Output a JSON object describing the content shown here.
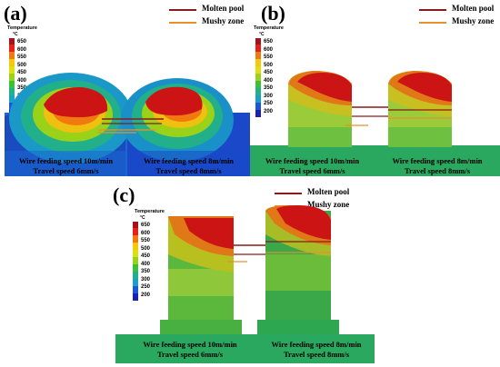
{
  "colors": {
    "molten": "#8b1a1a",
    "mushy": "#e8902a",
    "scale": [
      "#a0141a",
      "#e8201a",
      "#f07a10",
      "#f5c80a",
      "#dde010",
      "#9ad21a",
      "#3cc03a",
      "#20b08a",
      "#1aa0c8",
      "#1a58d8",
      "#1a20b0"
    ]
  },
  "legend": {
    "molten_label": "Molten pool",
    "mushy_label": "Mushy zone"
  },
  "colorbar": {
    "title": "Temperature",
    "unit": "°C",
    "ticks": [
      "650",
      "600",
      "550",
      "500",
      "450",
      "400",
      "350",
      "300",
      "250",
      "200"
    ]
  },
  "panels": [
    {
      "label": "(a)",
      "captions": [
        {
          "line1": "Wire feeding speed 10m/min",
          "line2": "Travel speed 6mm/s"
        },
        {
          "line1": "Wire feeding speed 8m/min",
          "line2": "Travel speed 8mm/s"
        }
      ]
    },
    {
      "label": "(b)",
      "captions": [
        {
          "line1": "Wire feeding speed 10m/min",
          "line2": "Travel speed 6mm/s"
        },
        {
          "line1": "Wire feeding speed 8m/min",
          "line2": "Travel speed 8mm/s"
        }
      ]
    },
    {
      "label": "(c)",
      "captions": [
        {
          "line1": "Wire feeding speed 10m/min",
          "line2": "Travel speed 6mm/s"
        },
        {
          "line1": "Wire feeding speed 8m/min",
          "line2": "Travel speed 8mm/s"
        }
      ]
    }
  ]
}
